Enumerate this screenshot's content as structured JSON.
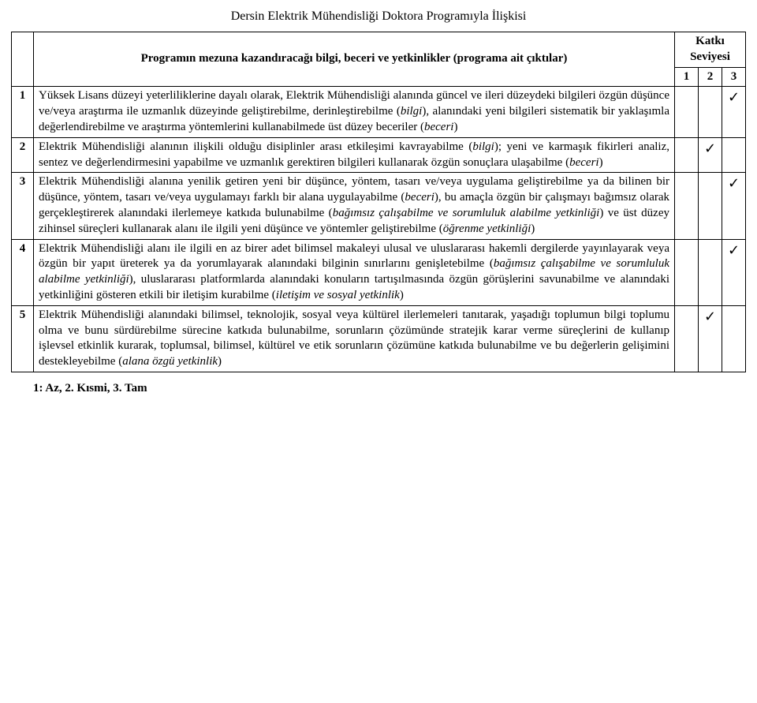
{
  "title": "Dersin Elektrik Mühendisliği Doktora Programıyla İlişkisi",
  "program_head": "Programın mezuna kazandıracağı bilgi, beceri ve yetkinlikler (programa ait çıktılar)",
  "level_head_top": "Katkı",
  "level_head_bottom": "Seviyesi",
  "level_columns": [
    "1",
    "2",
    "3"
  ],
  "tick_char": "✓",
  "rows": [
    {
      "num": "1",
      "text": "Yüksek Lisans düzeyi yeterliliklerine dayalı olarak, Elektrik Mühendisliği alanında güncel ve ileri düzeydeki bilgileri özgün düşünce ve/veya araştırma ile uzmanlık düzeyinde geliştirebilme, derinleştirebilme (<i>bilgi</i>), alanındaki yeni bilgileri sistematik bir yaklaşımla değerlendirebilme ve araştırma yöntemlerini kullanabilmede üst düzey beceriler (<i>beceri</i>)",
      "level": 3
    },
    {
      "num": "2",
      "text": "Elektrik Mühendisliği alanının ilişkili olduğu disiplinler arası etkileşimi kavrayabilme (<i>bilgi</i>); yeni ve karmaşık fikirleri analiz, sentez ve değerlendirmesini yapabilme ve uzmanlık gerektiren bilgileri kullanarak özgün sonuçlara ulaşabilme (<i>beceri</i>)",
      "level": 2
    },
    {
      "num": "3",
      "text": "Elektrik Mühendisliği alanına yenilik getiren yeni bir düşünce, yöntem, tasarı ve/veya uygulama geliştirebilme ya da bilinen bir düşünce, yöntem, tasarı ve/veya uygulamayı farklı bir alana uygulayabilme (<i>beceri</i>), bu amaçla özgün bir çalışmayı bağımsız olarak gerçekleştirerek alanındaki ilerlemeye katkıda bulunabilme (<i>bağımsız çalışabilme ve sorumluluk alabilme yetkinliği</i>) ve üst düzey zihinsel süreçleri kullanarak alanı ile ilgili yeni düşünce ve yöntemler geliştirebilme (<i>öğrenme yetkinliği</i>)",
      "level": 3
    },
    {
      "num": "4",
      "text": "Elektrik Mühendisliği alanı ile ilgili en az birer adet bilimsel makaleyi ulusal ve uluslararası hakemli dergilerde yayınlayarak veya özgün bir yapıt üreterek ya da yorumlayarak alanındaki bilginin sınırlarını genişletebilme (<i>bağımsız çalışabilme ve sorumluluk alabilme yetkinliği</i>), uluslararası platformlarda alanındaki konuların tartışılmasında özgün görüşlerini savunabilme ve alanındaki yetkinliğini gösteren etkili bir iletişim kurabilme (<i>iletişim ve sosyal yetkinlik</i>)",
      "level": 3
    },
    {
      "num": "5",
      "text": "Elektrik Mühendisliği alanındaki bilimsel, teknolojik, sosyal veya kültürel ilerlemeleri tanıtarak, yaşadığı toplumun bilgi toplumu olma ve bunu sürdürebilme sürecine katkıda bulunabilme, sorunların çözümünde stratejik karar verme süreçlerini de kullanıp işlevsel etkinlik kurarak, toplumsal, bilimsel, kültürel ve etik sorunların çözümüne katkıda bulunabilme ve bu değerlerin gelişimini destekleyebilme (<i>alana özgü yetkinlik</i>)",
      "level": 2
    }
  ],
  "legend": "1: Az,  2. Kısmi,  3. Tam"
}
